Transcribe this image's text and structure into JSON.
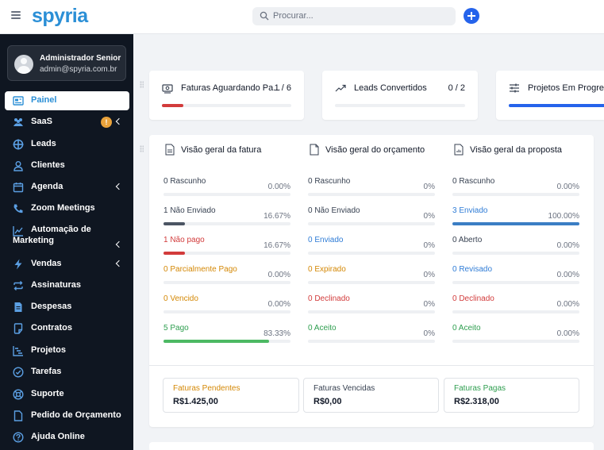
{
  "header": {
    "logo": "spyria",
    "search_placeholder": "Procurar..."
  },
  "user": {
    "name": "Administrador Senior",
    "email": "admin@spyria.com.br"
  },
  "sidebar": {
    "items": [
      {
        "label": "Painel",
        "icon": "dashboard-icon",
        "active": true
      },
      {
        "label": "SaaS",
        "icon": "users-icon",
        "badge": "!"
      },
      {
        "label": "Leads",
        "icon": "target-icon"
      },
      {
        "label": "Clientes",
        "icon": "user-icon"
      },
      {
        "label": "Agenda",
        "icon": "calendar-icon"
      },
      {
        "label": "Zoom Meetings",
        "icon": "phone-icon"
      },
      {
        "label": "Automação de Marketing",
        "icon": "chart-line-icon"
      },
      {
        "label": "Vendas",
        "icon": "bolt-icon"
      },
      {
        "label": "Assinaturas",
        "icon": "repeat-icon"
      },
      {
        "label": "Despesas",
        "icon": "file-text-icon"
      },
      {
        "label": "Contratos",
        "icon": "contract-icon"
      },
      {
        "label": "Projetos",
        "icon": "gantt-icon"
      },
      {
        "label": "Tarefas",
        "icon": "check-circle-icon"
      },
      {
        "label": "Suporte",
        "icon": "lifebuoy-icon"
      },
      {
        "label": "Pedido de Orçamento",
        "icon": "document-icon"
      },
      {
        "label": "Ajuda Online",
        "icon": "help-icon"
      }
    ]
  },
  "stats": [
    {
      "title": "Faturas Aguardando Pa...",
      "value": "1 / 6",
      "progress": 0.1667,
      "color": "#d23b3b",
      "icon": "invoice-icon"
    },
    {
      "title": "Leads Convertidos",
      "value": "0 / 2",
      "progress": 0,
      "color": "#2563eb",
      "icon": "trend-up-icon"
    },
    {
      "title": "Projetos Em Progres",
      "value": "",
      "progress": 1.0,
      "color": "#2563eb",
      "icon": "sliders-icon"
    }
  ],
  "overview": {
    "columns": [
      {
        "title": "Visão geral da fatura",
        "icon": "invoice-doc-icon",
        "rows": [
          {
            "label": "0 Rascunho",
            "pct": "0.00%",
            "color": "gray",
            "fill": 0,
            "bar": "#374151"
          },
          {
            "label": "1 Não Enviado",
            "pct": "16.67%",
            "color": "gray",
            "fill": 0.1667,
            "bar": "#4b5563"
          },
          {
            "label": "1 Não pago",
            "pct": "16.67%",
            "color": "red",
            "fill": 0.1667,
            "bar": "#d23b3b"
          },
          {
            "label": "0 Parcialmente Pago",
            "pct": "0.00%",
            "color": "orange",
            "fill": 0,
            "bar": "#d48806"
          },
          {
            "label": "0 Vencido",
            "pct": "0.00%",
            "color": "orange",
            "fill": 0,
            "bar": "#d48806"
          },
          {
            "label": "5 Pago",
            "pct": "83.33%",
            "color": "green",
            "fill": 0.8333,
            "bar": "#4cb963"
          }
        ]
      },
      {
        "title": "Visão geral do orçamento",
        "icon": "estimate-doc-icon",
        "rows": [
          {
            "label": "0 Rascunho",
            "pct": "0%",
            "color": "gray",
            "fill": 0,
            "bar": "#374151"
          },
          {
            "label": "0 Não Enviado",
            "pct": "0%",
            "color": "gray",
            "fill": 0,
            "bar": "#374151"
          },
          {
            "label": "0 Enviado",
            "pct": "0%",
            "color": "blue",
            "fill": 0,
            "bar": "#2f7cd6"
          },
          {
            "label": "0 Expirado",
            "pct": "0%",
            "color": "orange",
            "fill": 0,
            "bar": "#d48806"
          },
          {
            "label": "0 Declinado",
            "pct": "0%",
            "color": "red",
            "fill": 0,
            "bar": "#d23b3b"
          },
          {
            "label": "0 Aceito",
            "pct": "0%",
            "color": "green",
            "fill": 0,
            "bar": "#4cb963"
          }
        ]
      },
      {
        "title": "Visão geral da proposta",
        "icon": "proposal-doc-icon",
        "rows": [
          {
            "label": "0 Rascunho",
            "pct": "0.00%",
            "color": "gray",
            "fill": 0,
            "bar": "#374151"
          },
          {
            "label": "3 Enviado",
            "pct": "100.00%",
            "color": "blue",
            "fill": 1.0,
            "bar": "#3b7ec4"
          },
          {
            "label": "0 Aberto",
            "pct": "0.00%",
            "color": "gray",
            "fill": 0,
            "bar": "#374151"
          },
          {
            "label": "0 Revisado",
            "pct": "0.00%",
            "color": "blue",
            "fill": 0,
            "bar": "#2f7cd6"
          },
          {
            "label": "0 Declinado",
            "pct": "0.00%",
            "color": "red",
            "fill": 0,
            "bar": "#d23b3b"
          },
          {
            "label": "0 Aceito",
            "pct": "0.00%",
            "color": "green",
            "fill": 0,
            "bar": "#4cb963"
          }
        ]
      }
    ],
    "summary": [
      {
        "title": "Faturas Pendentes",
        "value": "R$1.425,00",
        "color": "orange"
      },
      {
        "title": "Faturas Vencidas",
        "value": "R$0,00",
        "color": "gray"
      },
      {
        "title": "Faturas Pagas",
        "value": "R$2.318,00",
        "color": "green"
      }
    ]
  }
}
